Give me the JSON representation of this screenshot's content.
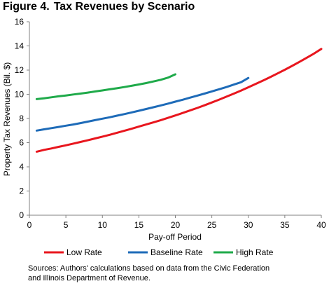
{
  "figure": {
    "number_label": "Figure 4.",
    "title": "Tax Revenues by Scenario"
  },
  "source_note": {
    "line1": "Sources: Authors' calculations based on data from the Civic Federation",
    "line2": "and Illinois Department of Revenue."
  },
  "chart_data": {
    "type": "line",
    "title": "Tax Revenues by Scenario",
    "xlabel": "Pay-off Period",
    "ylabel": "Property Tax Revenues (Bil. $)",
    "xlim": [
      0,
      40
    ],
    "ylim": [
      0,
      16
    ],
    "xticks": [
      0,
      5,
      10,
      15,
      20,
      25,
      30,
      35,
      40
    ],
    "yticks": [
      0,
      2,
      4,
      6,
      8,
      10,
      12,
      14,
      16
    ],
    "grid": false,
    "legend_position": "bottom",
    "series": [
      {
        "name": "Low Rate",
        "color": "#e8161e",
        "x": [
          1,
          2,
          3,
          4,
          5,
          6,
          7,
          8,
          9,
          10,
          11,
          12,
          13,
          14,
          15,
          16,
          17,
          18,
          19,
          20,
          21,
          22,
          23,
          24,
          25,
          26,
          27,
          28,
          29,
          30,
          31,
          32,
          33,
          34,
          35,
          36,
          37,
          38,
          39,
          40
        ],
        "y": [
          5.25,
          5.4,
          5.52,
          5.65,
          5.78,
          5.92,
          6.06,
          6.2,
          6.35,
          6.5,
          6.65,
          6.82,
          6.98,
          7.15,
          7.33,
          7.5,
          7.68,
          7.86,
          8.05,
          8.25,
          8.45,
          8.66,
          8.87,
          9.09,
          9.32,
          9.56,
          9.8,
          10.05,
          10.31,
          10.58,
          10.85,
          11.13,
          11.42,
          11.72,
          12.03,
          12.35,
          12.68,
          13.02,
          13.37,
          13.75
        ]
      },
      {
        "name": "Baseline Rate",
        "color": "#1e6bb8",
        "x": [
          1,
          2,
          3,
          4,
          5,
          6,
          7,
          8,
          9,
          10,
          11,
          12,
          13,
          14,
          15,
          16,
          17,
          18,
          19,
          20,
          21,
          22,
          23,
          24,
          25,
          26,
          27,
          28,
          29,
          30
        ],
        "y": [
          7.0,
          7.1,
          7.2,
          7.3,
          7.4,
          7.5,
          7.62,
          7.74,
          7.86,
          7.98,
          8.1,
          8.23,
          8.36,
          8.5,
          8.64,
          8.78,
          8.93,
          9.08,
          9.23,
          9.39,
          9.55,
          9.72,
          9.89,
          10.06,
          10.24,
          10.42,
          10.6,
          10.8,
          11.0,
          11.35
        ]
      },
      {
        "name": "High Rate",
        "color": "#1faa4a",
        "x": [
          1,
          2,
          3,
          4,
          5,
          6,
          7,
          8,
          9,
          10,
          11,
          12,
          13,
          14,
          15,
          16,
          17,
          18,
          19,
          20
        ],
        "y": [
          9.6,
          9.67,
          9.75,
          9.83,
          9.9,
          9.98,
          10.06,
          10.14,
          10.23,
          10.32,
          10.41,
          10.5,
          10.6,
          10.7,
          10.81,
          10.93,
          11.06,
          11.2,
          11.38,
          11.65
        ]
      }
    ]
  }
}
